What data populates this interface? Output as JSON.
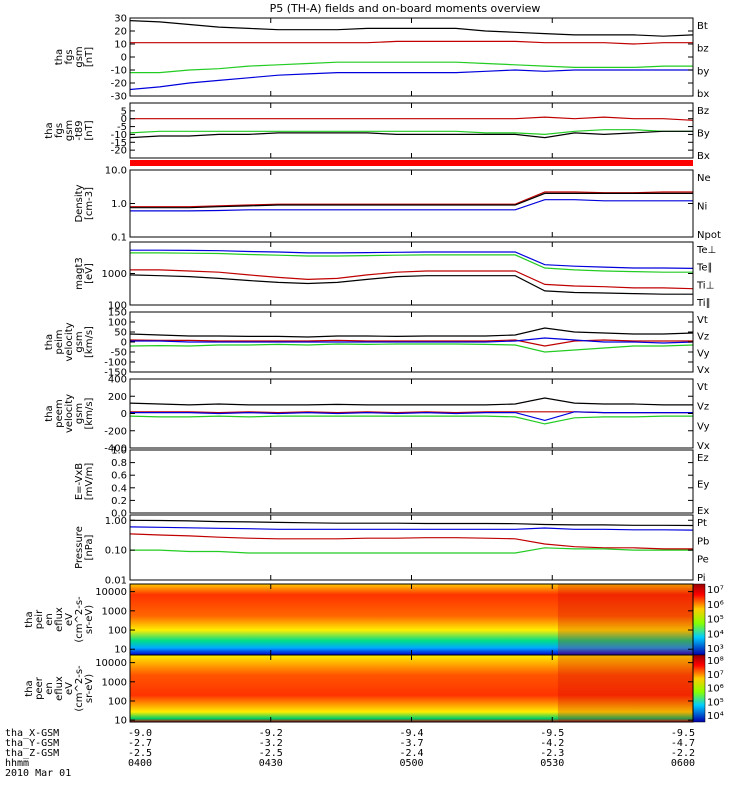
{
  "title": "P5 (TH-A) fields and on-board moments overview",
  "date_label": "2010 Mar 01",
  "colors": {
    "black": "#000000",
    "red": "#c00000",
    "bright_red": "#ff0000",
    "green": "#22cc22",
    "blue": "#0000dd"
  },
  "ephemeris": {
    "labels": [
      "tha_X-GSM",
      "tha_Y-GSM",
      "tha_Z-GSM",
      "hhmm"
    ],
    "columns": [
      [
        "-9.0",
        "-2.7",
        "-2.5",
        "0400"
      ],
      [
        "-9.2",
        "-3.2",
        "-2.5",
        "0430"
      ],
      [
        "-9.4",
        "-3.7",
        "-2.4",
        "0500"
      ],
      [
        "-9.5",
        "-4.2",
        "-2.3",
        "0530"
      ],
      [
        "-9.5",
        "-4.7",
        "-2.2",
        "0600"
      ]
    ]
  },
  "colorbars": [
    {
      "ticks": [
        "10⁷",
        "10⁶",
        "10⁵",
        "10⁴",
        "10³"
      ]
    },
    {
      "ticks": [
        "10⁸",
        "10⁷",
        "10⁶",
        "10⁵",
        "10⁴"
      ]
    }
  ],
  "chart_data": [
    {
      "type": "line",
      "ylabel": [
        "tha",
        "fgs",
        "gsm",
        "[nT]"
      ],
      "ylim": [
        -30,
        30
      ],
      "yticks": [
        "30",
        "20",
        "10",
        "0",
        "-10",
        "-20",
        "-30"
      ],
      "series": [
        {
          "name": "Bt",
          "color": "#000000",
          "values": [
            28,
            27,
            25,
            23,
            22,
            21,
            21,
            21,
            22,
            22,
            22,
            22,
            20,
            19,
            18,
            17,
            17,
            17,
            16,
            17
          ]
        },
        {
          "name": "bz",
          "color": "#c00000",
          "values": [
            11,
            11,
            11,
            11,
            11,
            11,
            11,
            11,
            11,
            12,
            12,
            12,
            12,
            12,
            11,
            11,
            11,
            10,
            11,
            11
          ]
        },
        {
          "name": "by",
          "color": "#22cc22",
          "values": [
            -12,
            -12,
            -10,
            -9,
            -7,
            -6,
            -5,
            -4,
            -4,
            -4,
            -4,
            -4,
            -5,
            -6,
            -7,
            -8,
            -8,
            -8,
            -7,
            -7
          ]
        },
        {
          "name": "bx",
          "color": "#0000dd",
          "values": [
            -25,
            -23,
            -20,
            -18,
            -16,
            -14,
            -13,
            -12,
            -12,
            -12,
            -12,
            -12,
            -11,
            -10,
            -11,
            -10,
            -10,
            -10,
            -10,
            -10
          ]
        }
      ]
    },
    {
      "type": "line",
      "ylabel": [
        "tha",
        "fgs",
        "gsm",
        "-t89",
        "[nT]"
      ],
      "ylim": [
        -25,
        10
      ],
      "yticks": [
        "5",
        "0",
        "-5",
        "-10",
        "-15",
        "-20"
      ],
      "series": [
        {
          "name": "Bz",
          "color": "#c00000",
          "values": [
            0,
            0,
            0,
            0,
            0,
            0,
            0,
            0,
            0,
            0,
            0,
            0,
            0,
            0,
            1,
            0,
            1,
            0,
            0,
            -1
          ]
        },
        {
          "name": "By",
          "color": "#22cc22",
          "values": [
            -9,
            -8,
            -8,
            -8,
            -8,
            -8,
            -8,
            -8,
            -8,
            -8,
            -8,
            -8,
            -9,
            -9,
            -10,
            -8,
            -7,
            -7,
            -8,
            -8
          ]
        },
        {
          "name": "Bx",
          "color": "#000000",
          "values": [
            -12,
            -11,
            -11,
            -10,
            -10,
            -9,
            -9,
            -9,
            -9,
            -10,
            -10,
            -10,
            -10,
            -10,
            -12,
            -9,
            -10,
            -9,
            -8,
            -8
          ]
        }
      ]
    },
    {
      "type": "line",
      "ylabel": [
        "Density",
        "[cm-3]"
      ],
      "yscale": "log",
      "ylim": [
        0.1,
        10
      ],
      "yticks": [
        "10.0",
        "1.0",
        "0.1"
      ],
      "series": [
        {
          "name": "Ne",
          "color": "#c00000",
          "values": [
            0.8,
            0.8,
            0.8,
            0.85,
            0.9,
            0.95,
            0.95,
            0.95,
            0.95,
            0.95,
            0.95,
            0.95,
            0.95,
            0.95,
            2.2,
            2.2,
            2.1,
            2.1,
            2.2,
            2.2
          ]
        },
        {
          "name": "Ni",
          "color": "#000000",
          "values": [
            0.75,
            0.75,
            0.75,
            0.8,
            0.85,
            0.9,
            0.9,
            0.9,
            0.9,
            0.9,
            0.9,
            0.9,
            0.9,
            0.9,
            2.0,
            2.0,
            2.0,
            2.0,
            2.0,
            2.0
          ]
        },
        {
          "name": "Npot",
          "color": "#0000dd",
          "values": [
            0.6,
            0.6,
            0.6,
            0.62,
            0.65,
            0.65,
            0.65,
            0.65,
            0.65,
            0.65,
            0.65,
            0.65,
            0.65,
            0.65,
            1.3,
            1.3,
            1.2,
            1.2,
            1.2,
            1.2
          ]
        }
      ]
    },
    {
      "type": "line",
      "ylabel": [
        "magt3",
        "[eV]"
      ],
      "yscale": "log",
      "ylim": [
        100,
        10000
      ],
      "yticks": [
        "1000",
        "100"
      ],
      "series": [
        {
          "name": "Te⊥",
          "color": "#c00000",
          "values": [
            1300,
            1300,
            1200,
            1100,
            900,
            750,
            650,
            700,
            900,
            1100,
            1200,
            1200,
            1200,
            1200,
            450,
            400,
            380,
            350,
            350,
            330
          ]
        },
        {
          "name": "Te∥",
          "color": "#000000",
          "values": [
            900,
            850,
            800,
            700,
            600,
            520,
            480,
            520,
            650,
            800,
            850,
            850,
            850,
            850,
            280,
            250,
            240,
            230,
            220,
            220
          ]
        },
        {
          "name": "Ti⊥",
          "color": "#0000dd",
          "values": [
            5500,
            5500,
            5400,
            5300,
            5000,
            4800,
            4500,
            4500,
            4600,
            4700,
            4800,
            4800,
            4800,
            4800,
            1900,
            1700,
            1600,
            1500,
            1500,
            1450
          ]
        },
        {
          "name": "Ti∥",
          "color": "#22cc22",
          "values": [
            4500,
            4500,
            4400,
            4300,
            4000,
            3800,
            3600,
            3600,
            3700,
            3800,
            3900,
            3900,
            3900,
            3900,
            1500,
            1300,
            1200,
            1150,
            1100,
            1100
          ]
        }
      ]
    },
    {
      "type": "line",
      "ylabel": [
        "tha",
        "peim",
        "velocity",
        "gsm",
        "[km/s]"
      ],
      "ylim": [
        -150,
        150
      ],
      "yticks": [
        "150",
        "100",
        "50",
        "0",
        "-50",
        "-100",
        "-150"
      ],
      "series": [
        {
          "name": "Vt",
          "color": "#000000",
          "values": [
            40,
            35,
            30,
            30,
            28,
            28,
            25,
            30,
            30,
            28,
            30,
            30,
            30,
            35,
            70,
            50,
            45,
            40,
            40,
            45
          ]
        },
        {
          "name": "Vz",
          "color": "#c00000",
          "values": [
            10,
            8,
            8,
            5,
            5,
            5,
            5,
            8,
            5,
            5,
            5,
            5,
            5,
            10,
            -20,
            5,
            10,
            5,
            5,
            5
          ]
        },
        {
          "name": "Vy",
          "color": "#22cc22",
          "values": [
            -20,
            -18,
            -20,
            -15,
            -15,
            -12,
            -15,
            -10,
            -12,
            -10,
            -10,
            -10,
            -12,
            -15,
            -50,
            -40,
            -30,
            -20,
            -20,
            -15
          ]
        },
        {
          "name": "Vx",
          "color": "#0000dd",
          "values": [
            5,
            5,
            0,
            0,
            0,
            0,
            0,
            0,
            0,
            0,
            0,
            0,
            0,
            5,
            20,
            10,
            0,
            0,
            -5,
            0
          ]
        }
      ]
    },
    {
      "type": "line",
      "ylabel": [
        "tha",
        "peem",
        "velocity",
        "gsm",
        "[km/s]"
      ],
      "ylim": [
        -400,
        400
      ],
      "yticks": [
        "400",
        "200",
        "0",
        "-200",
        "-400"
      ],
      "series": [
        {
          "name": "Vt",
          "color": "#000000",
          "values": [
            120,
            110,
            100,
            110,
            100,
            100,
            100,
            105,
            100,
            100,
            100,
            100,
            100,
            110,
            180,
            120,
            110,
            110,
            100,
            100
          ]
        },
        {
          "name": "Vz",
          "color": "#c00000",
          "values": [
            20,
            20,
            20,
            10,
            20,
            10,
            20,
            10,
            20,
            10,
            20,
            10,
            20,
            20,
            20,
            20,
            10,
            10,
            10,
            10
          ]
        },
        {
          "name": "Vy",
          "color": "#22cc22",
          "values": [
            -30,
            -40,
            -40,
            -30,
            -40,
            -30,
            -30,
            -30,
            -30,
            -30,
            -30,
            -30,
            -30,
            -40,
            -120,
            -50,
            -40,
            -40,
            -30,
            -30
          ]
        },
        {
          "name": "Vx",
          "color": "#0000dd",
          "values": [
            10,
            10,
            10,
            0,
            10,
            0,
            10,
            0,
            10,
            0,
            10,
            0,
            10,
            10,
            -80,
            20,
            10,
            10,
            10,
            10
          ]
        }
      ]
    },
    {
      "type": "line",
      "ylabel": [
        "E=-VxB",
        "[mV/m]"
      ],
      "ylim": [
        0,
        1
      ],
      "yticks": [
        "1.0",
        "0.8",
        "0.6",
        "0.4",
        "0.2",
        "0.0"
      ],
      "series": [
        {
          "name": "Ez",
          "color": "#c00000",
          "values": []
        },
        {
          "name": "Ey",
          "color": "#22cc22",
          "values": []
        },
        {
          "name": "Ex",
          "color": "#0000dd",
          "values": []
        }
      ]
    },
    {
      "type": "line",
      "ylabel": [
        "Pressure",
        "[nPa]"
      ],
      "yscale": "log",
      "ylim": [
        0.01,
        1.5
      ],
      "yticks": [
        "1.00",
        "0.10",
        "0.01"
      ],
      "series": [
        {
          "name": "Pt",
          "color": "#000000",
          "values": [
            1.0,
            0.98,
            0.95,
            0.9,
            0.88,
            0.85,
            0.82,
            0.8,
            0.8,
            0.8,
            0.78,
            0.78,
            0.78,
            0.77,
            0.72,
            0.7,
            0.7,
            0.68,
            0.68,
            0.67
          ]
        },
        {
          "name": "Pb",
          "color": "#c00000",
          "values": [
            0.35,
            0.32,
            0.3,
            0.27,
            0.25,
            0.24,
            0.24,
            0.24,
            0.25,
            0.25,
            0.26,
            0.26,
            0.25,
            0.24,
            0.16,
            0.13,
            0.12,
            0.12,
            0.11,
            0.11
          ]
        },
        {
          "name": "Pe",
          "color": "#22cc22",
          "values": [
            0.1,
            0.1,
            0.09,
            0.09,
            0.08,
            0.08,
            0.08,
            0.08,
            0.08,
            0.08,
            0.08,
            0.08,
            0.08,
            0.08,
            0.12,
            0.11,
            0.11,
            0.1,
            0.1,
            0.1
          ]
        },
        {
          "name": "Pi",
          "color": "#0000dd",
          "values": [
            0.6,
            0.58,
            0.56,
            0.54,
            0.52,
            0.5,
            0.5,
            0.5,
            0.5,
            0.5,
            0.5,
            0.5,
            0.5,
            0.5,
            0.55,
            0.5,
            0.5,
            0.48,
            0.48,
            0.47
          ]
        }
      ]
    },
    {
      "type": "heatmap",
      "ylabel": [
        "tha",
        "peir",
        "en",
        "eflux",
        "eV",
        "(cm^2-s-",
        "sr-eV)"
      ],
      "yscale": "log",
      "ylim": [
        5,
        25000
      ],
      "yticks": [
        "10000",
        "1000",
        "100",
        "10"
      ]
    },
    {
      "type": "heatmap",
      "ylabel": [
        "tha",
        "peer",
        "en",
        "eflux",
        "eV",
        "(cm^2-s-",
        "sr-eV)"
      ],
      "yscale": "log",
      "ylim": [
        8,
        25000
      ],
      "yticks": [
        "10000",
        "1000",
        "100",
        "10"
      ]
    }
  ]
}
